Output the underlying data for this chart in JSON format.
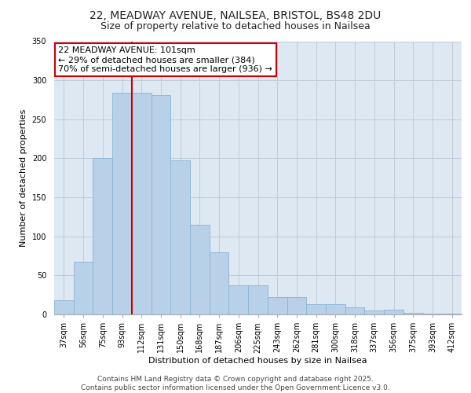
{
  "title_line1": "22, MEADWAY AVENUE, NAILSEA, BRISTOL, BS48 2DU",
  "title_line2": "Size of property relative to detached houses in Nailsea",
  "xlabel": "Distribution of detached houses by size in Nailsea",
  "ylabel": "Number of detached properties",
  "categories": [
    "37sqm",
    "56sqm",
    "75sqm",
    "93sqm",
    "112sqm",
    "131sqm",
    "150sqm",
    "168sqm",
    "187sqm",
    "206sqm",
    "225sqm",
    "243sqm",
    "262sqm",
    "281sqm",
    "300sqm",
    "318sqm",
    "337sqm",
    "356sqm",
    "375sqm",
    "393sqm",
    "412sqm"
  ],
  "values": [
    18,
    67,
    200,
    284,
    284,
    281,
    197,
    115,
    80,
    37,
    37,
    22,
    22,
    13,
    13,
    9,
    5,
    6,
    2,
    1,
    1
  ],
  "bar_color": "#b8d0e8",
  "bar_edge_color": "#8ab4d4",
  "vline_x_index": 4,
  "vline_color": "#cc0000",
  "annotation_text": "22 MEADWAY AVENUE: 101sqm\n← 29% of detached houses are smaller (384)\n70% of semi-detached houses are larger (936) →",
  "annotation_box_color": "#ffffff",
  "annotation_box_edge": "#cc0000",
  "ylim": [
    0,
    350
  ],
  "yticks": [
    0,
    50,
    100,
    150,
    200,
    250,
    300,
    350
  ],
  "grid_color": "#c8d8e8",
  "background_color": "#dde8f2",
  "footer_line1": "Contains HM Land Registry data © Crown copyright and database right 2025.",
  "footer_line2": "Contains public sector information licensed under the Open Government Licence v3.0.",
  "title_fontsize": 10,
  "subtitle_fontsize": 9,
  "axis_label_fontsize": 8,
  "tick_fontsize": 7,
  "annotation_fontsize": 8,
  "footer_fontsize": 6.5
}
